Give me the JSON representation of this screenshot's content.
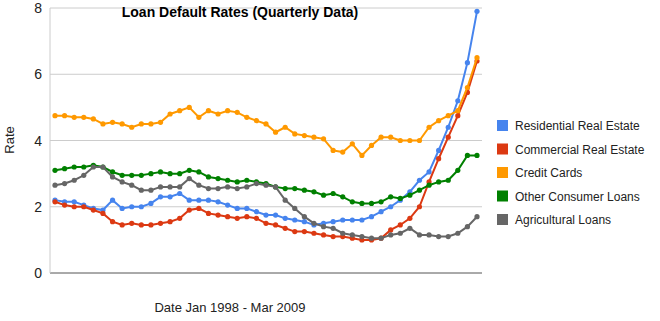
{
  "chart_data": {
    "type": "line",
    "title": "Loan Default Rates (Quarterly Data)",
    "x_label": "Date Jan 1998 - Mar 2009",
    "y_label": "Rate",
    "categories": [
      null,
      null,
      null,
      null,
      null,
      null,
      null,
      null,
      null,
      null,
      null,
      null,
      null,
      null,
      null,
      null,
      null,
      null,
      null,
      null,
      null,
      null,
      null,
      null,
      null,
      null,
      null,
      null,
      null,
      null,
      null,
      null,
      null,
      null,
      null,
      null,
      null,
      null,
      null,
      null,
      null,
      null,
      null,
      null,
      null
    ],
    "ylim": [
      0,
      8
    ],
    "yticks": [
      0,
      2,
      4,
      6,
      8
    ],
    "grid": true,
    "legend": "right",
    "tick_labels": "y",
    "marker": "circle",
    "series": [
      {
        "name": "Residential Real Estate",
        "color": "#4684ee",
        "values": [
          2.2,
          2.15,
          2.15,
          2.05,
          1.95,
          1.9,
          2.2,
          1.95,
          2.0,
          2.0,
          2.1,
          2.3,
          2.3,
          2.4,
          2.2,
          2.2,
          2.2,
          2.15,
          2.05,
          1.95,
          1.95,
          1.85,
          1.75,
          1.75,
          1.65,
          1.6,
          1.55,
          1.45,
          1.5,
          1.55,
          1.6,
          1.6,
          1.6,
          1.7,
          1.85,
          2.0,
          2.2,
          2.45,
          2.8,
          3.05,
          3.7,
          4.4,
          5.2,
          6.35,
          7.9
        ]
      },
      {
        "name": "Commercial Real Estate",
        "color": "#dc3912",
        "values": [
          2.15,
          2.05,
          2.0,
          2.0,
          1.9,
          1.8,
          1.55,
          1.45,
          1.5,
          1.45,
          1.45,
          1.5,
          1.55,
          1.65,
          1.9,
          1.95,
          1.8,
          1.75,
          1.7,
          1.65,
          1.7,
          1.65,
          1.5,
          1.45,
          1.35,
          1.25,
          1.25,
          1.2,
          1.15,
          1.1,
          1.1,
          1.05,
          1.0,
          1.0,
          1.05,
          1.3,
          1.45,
          1.65,
          2.0,
          2.75,
          3.45,
          4.1,
          4.75,
          5.45,
          6.4
        ]
      },
      {
        "name": "Credit Cards",
        "color": "#ff9900",
        "values": [
          4.75,
          4.75,
          4.7,
          4.7,
          4.65,
          4.5,
          4.55,
          4.5,
          4.4,
          4.5,
          4.5,
          4.55,
          4.8,
          4.9,
          5.0,
          4.7,
          4.9,
          4.8,
          4.9,
          4.85,
          4.7,
          4.6,
          4.5,
          4.25,
          4.4,
          4.2,
          4.15,
          4.1,
          4.05,
          3.7,
          3.65,
          3.9,
          3.55,
          3.85,
          4.1,
          4.1,
          4.0,
          4.0,
          4.0,
          4.4,
          4.6,
          4.75,
          4.9,
          5.6,
          6.5
        ]
      },
      {
        "name": "Other Consumer Loans",
        "color": "#008000",
        "values": [
          3.1,
          3.15,
          3.2,
          3.2,
          3.25,
          3.2,
          3.05,
          2.95,
          2.95,
          2.95,
          3.0,
          3.05,
          3.0,
          3.0,
          3.1,
          3.05,
          2.9,
          2.85,
          2.8,
          2.75,
          2.8,
          2.75,
          2.7,
          2.6,
          2.55,
          2.55,
          2.5,
          2.45,
          2.35,
          2.4,
          2.3,
          2.15,
          2.1,
          2.1,
          2.15,
          2.3,
          2.25,
          2.35,
          2.5,
          2.65,
          2.75,
          2.8,
          3.1,
          3.55,
          3.55
        ]
      },
      {
        "name": "Agricultural Loans",
        "color": "#666666",
        "values": [
          2.65,
          2.7,
          2.8,
          2.95,
          3.2,
          3.2,
          2.9,
          2.75,
          2.65,
          2.5,
          2.5,
          2.6,
          2.6,
          2.6,
          2.85,
          2.65,
          2.55,
          2.55,
          2.6,
          2.55,
          2.6,
          2.7,
          2.65,
          2.6,
          2.2,
          1.95,
          1.7,
          1.5,
          1.4,
          1.35,
          1.2,
          1.15,
          1.1,
          1.05,
          1.05,
          1.15,
          1.2,
          1.35,
          1.15,
          1.15,
          1.1,
          1.1,
          1.2,
          1.4,
          1.7
        ]
      }
    ]
  }
}
